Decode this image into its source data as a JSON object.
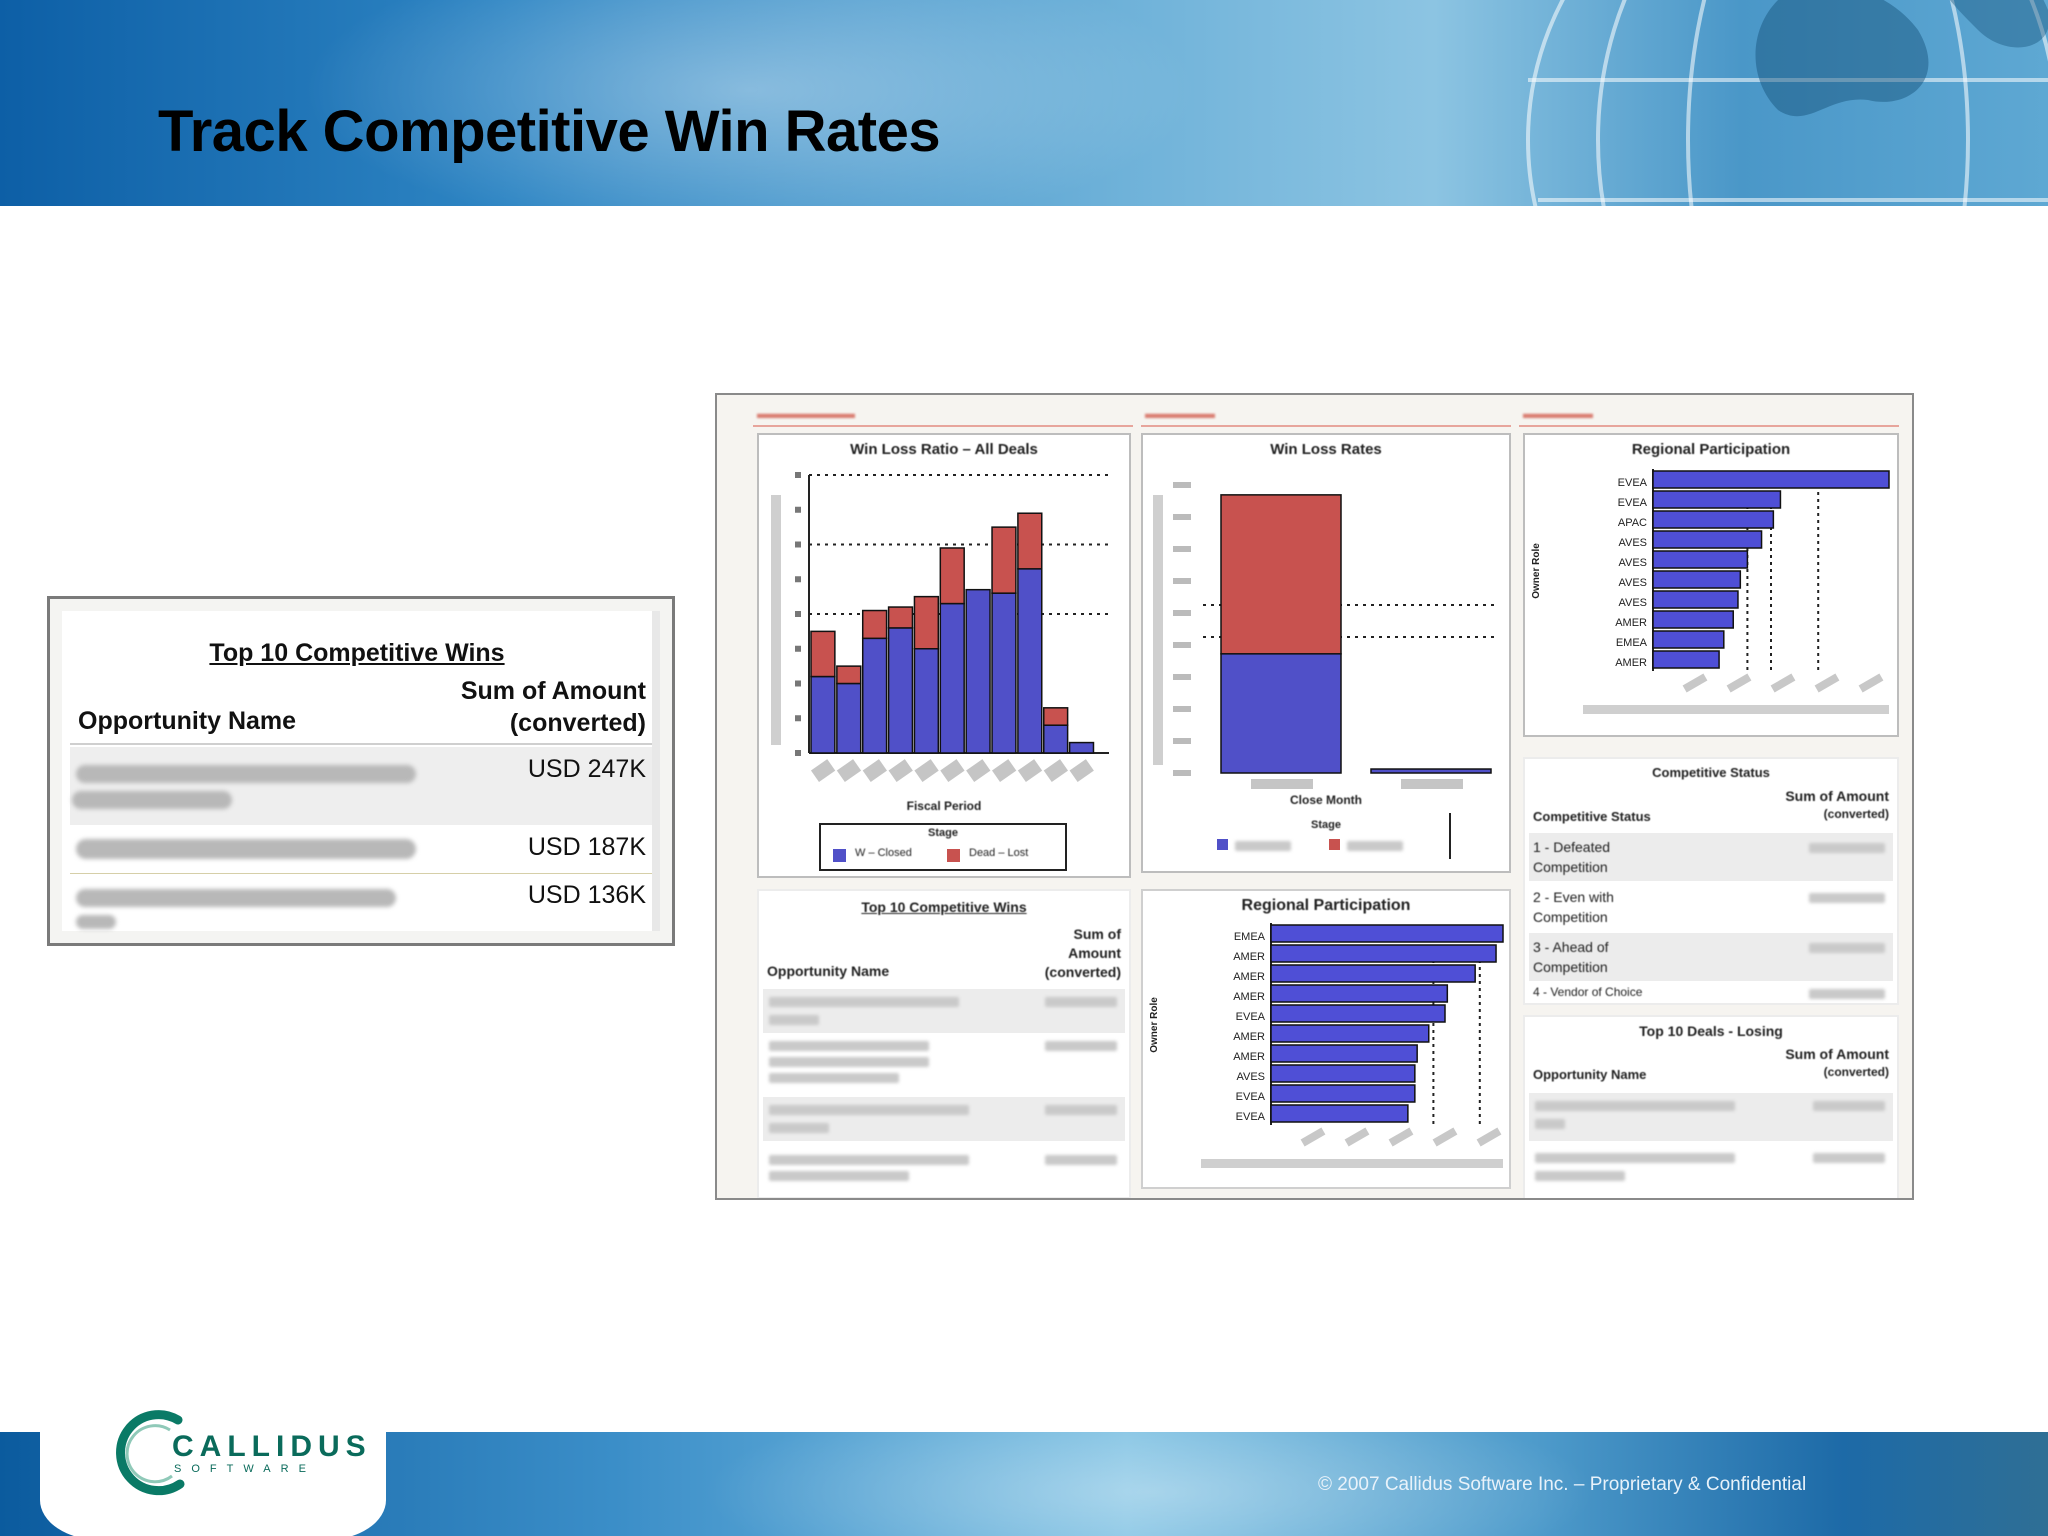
{
  "slide": {
    "title": "Track Competitive Win Rates",
    "copyright": "© 2007 Callidus Software Inc. – Proprietary & Confidential"
  },
  "logo": {
    "name": "CALLIDUS",
    "sub": "SOFTWARE"
  },
  "zoom_table": {
    "title": "Top 10 Competitive Wins",
    "col_name": "Opportunity Name",
    "col_amount_line1": "Sum of Amount",
    "col_amount_line2": "(converted)",
    "rows": [
      {
        "amount": "USD 247K"
      },
      {
        "amount": "USD 187K"
      },
      {
        "amount": "USD 136K"
      }
    ]
  },
  "dashboard": {
    "panel_win_loss_all": {
      "title": "Win Loss Ratio – All Deals",
      "xlabel": "Fiscal Period",
      "legend_title": "Stage",
      "legend": [
        {
          "label": "Closed Won",
          "display": "W – Closed",
          "color": "#5050c8"
        },
        {
          "label": "Closed Lost",
          "display": "Dead – Lost",
          "color": "#c8524f"
        }
      ]
    },
    "panel_win_loss_rates": {
      "title": "Win Loss Rates",
      "xlabel": "Close Month",
      "legend_title": "Stage"
    },
    "panel_regional_top": {
      "title": "Regional Participation",
      "ylabel": "Owner Role"
    },
    "panel_top10_wins": {
      "title": "Top 10 Competitive Wins",
      "col_name": "Opportunity Name",
      "col_amount": [
        "Sum of",
        "Amount",
        "(converted)"
      ]
    },
    "panel_regional_bottom": {
      "title": "Regional Participation",
      "ylabel": "Owner Role"
    },
    "panel_competitive_status": {
      "title": "Competitive Status",
      "col_status": "Competitive Status",
      "col_amount": [
        "Sum of Amount",
        "(converted)"
      ],
      "rows": [
        [
          "1 - Defeated",
          "Competition"
        ],
        [
          "2 - Even with",
          "Competition"
        ],
        [
          "3 - Ahead of",
          "Competition"
        ],
        [
          "4 - Vendor of Choice"
        ]
      ]
    },
    "panel_top10_losing": {
      "title": "Top 10 Deals - Losing",
      "col_name": "Opportunity Name",
      "col_amount": [
        "Sum of Amount",
        "(converted)"
      ]
    }
  },
  "chart_data": [
    {
      "type": "bar",
      "title": "Win Loss Ratio – All Deals",
      "xlabel": "Fiscal Period",
      "stacked": true,
      "series": [
        {
          "name": "Closed Won",
          "values": [
            2.2,
            2.0,
            3.3,
            3.6,
            3.0,
            4.3,
            4.7,
            4.6,
            5.3,
            0.8,
            0.3
          ]
        },
        {
          "name": "Closed Lost",
          "values": [
            1.3,
            0.5,
            0.8,
            0.6,
            1.5,
            1.6,
            0,
            1.9,
            1.6,
            0.5,
            0
          ]
        }
      ],
      "ylim": [
        0,
        8
      ],
      "gridlines": [
        4,
        6,
        8
      ]
    },
    {
      "type": "bar",
      "title": "Win Loss Rates",
      "xlabel": "Close Month",
      "stacked": true,
      "series": [
        {
          "name": "Closed Won",
          "values": [
            1200,
            40
          ]
        },
        {
          "name": "Closed Lost",
          "values": [
            1600,
            0
          ]
        }
      ],
      "ylim": [
        0,
        3000
      ]
    },
    {
      "type": "bar",
      "orientation": "horizontal",
      "title": "Regional Participation",
      "categories": [
        "EVEA",
        "EVEA",
        "APAC",
        "AVES",
        "AVES",
        "AVES",
        "AVES",
        "AMER",
        "EMEA",
        "AMER"
      ],
      "values": [
        100,
        54,
        51,
        46,
        40,
        37,
        36,
        34,
        30,
        28
      ],
      "xlim": [
        0,
        100
      ]
    },
    {
      "type": "bar",
      "orientation": "horizontal",
      "title": "Regional Participation",
      "categories": [
        "EMEA",
        "AMER",
        "AMER",
        "AMER",
        "EVEA",
        "AMER",
        "AMER",
        "AVES",
        "EVEA",
        "EVEA"
      ],
      "values": [
        100,
        97,
        88,
        76,
        75,
        68,
        63,
        62,
        62,
        59
      ],
      "xlim": [
        0,
        100
      ]
    }
  ]
}
